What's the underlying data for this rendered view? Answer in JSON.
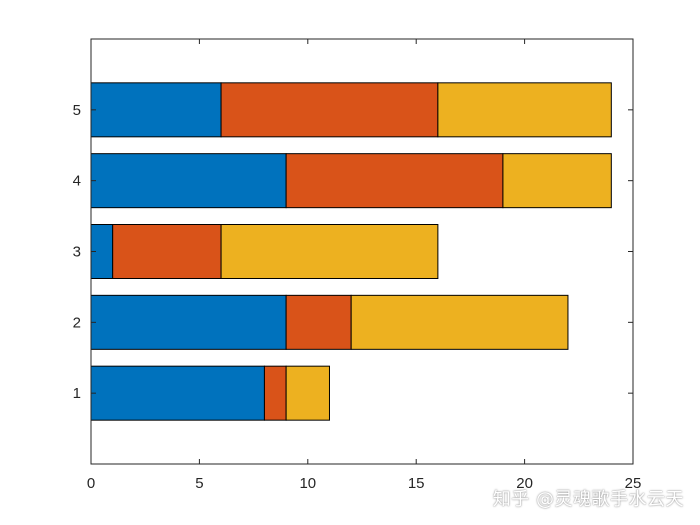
{
  "chart_data": {
    "type": "bar",
    "orientation": "horizontal",
    "stacked": true,
    "categories": [
      "1",
      "2",
      "3",
      "4",
      "5"
    ],
    "series": [
      {
        "values": [
          8,
          9,
          1,
          9,
          6
        ],
        "color": "#0072BD"
      },
      {
        "values": [
          1,
          3,
          5,
          10,
          10
        ],
        "color": "#D95319"
      },
      {
        "values": [
          2,
          10,
          10,
          5,
          8
        ],
        "color": "#EDB120"
      }
    ],
    "xlim": [
      0,
      25
    ],
    "ylim": [
      0,
      6
    ],
    "x_ticks": [
      0,
      5,
      10,
      15,
      20,
      25
    ],
    "y_ticks": [
      1,
      2,
      3,
      4,
      5
    ],
    "grid": false,
    "title": "",
    "xlabel": "",
    "ylabel": ""
  },
  "watermark": "知乎 @灵魂歌手水云天"
}
